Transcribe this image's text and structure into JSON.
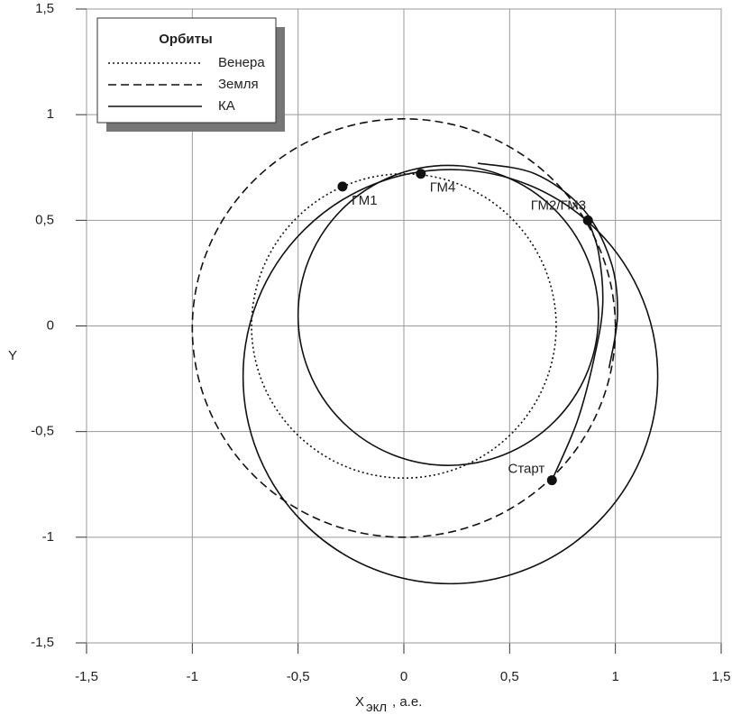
{
  "chart_data": {
    "type": "orbit",
    "x_label": "X",
    "x_label_sub": "экл",
    "x_label_unit": ", а.е.",
    "y_label": "Y",
    "xlim": [
      -1.5,
      1.5
    ],
    "ylim": [
      -1.5,
      1.5
    ],
    "xticks": [
      {
        "value": -1.5,
        "label": "-1,5"
      },
      -1,
      {
        "value": -0.5,
        "label": "-0,5"
      },
      0,
      {
        "value": 0.5,
        "label": "0,5"
      },
      1,
      {
        "value": 1.5,
        "label": "1,5"
      }
    ],
    "yticks": [
      {
        "value": -1.5,
        "label": "-1,5"
      },
      -1,
      {
        "value": -0.5,
        "label": "-0,5"
      },
      0,
      {
        "value": 0.5,
        "label": "0,5"
      },
      1,
      {
        "value": 1.5,
        "label": "1,5"
      }
    ],
    "grid": true,
    "legend_title": "Орбиты",
    "legend": "upper left",
    "series": [
      {
        "name": "Венера",
        "style": "dotted",
        "color": "#111",
        "orbits": [
          {
            "cx": 0,
            "cy": 0,
            "rx": 0.72,
            "ry": 0.72
          }
        ]
      },
      {
        "name": "Земля",
        "style": "dashed",
        "color": "#111",
        "orbits": [
          {
            "cx": 0,
            "cy": -0.01,
            "rx": 1.0,
            "ry": 0.99
          }
        ]
      },
      {
        "name": "КА",
        "style": "solid",
        "color": "#111",
        "orbits": [
          {
            "cx": 0.22,
            "cy": -0.24,
            "rx": 0.98,
            "ry": 0.98
          },
          {
            "cx": 0.21,
            "cy": 0.05,
            "rx": 0.71,
            "ry": 0.71
          }
        ],
        "arcs": [
          {
            "x": [
              0.7,
              0.82,
              0.9,
              0.94,
              0.92,
              0.87
            ],
            "y": [
              -0.73,
              -0.45,
              -0.15,
              0.1,
              0.35,
              0.5
            ]
          },
          {
            "x": [
              0.35,
              0.62,
              0.85,
              0.98,
              1.01,
              0.97
            ],
            "y": [
              0.77,
              0.72,
              0.55,
              0.3,
              0.05,
              -0.2
            ]
          }
        ]
      }
    ],
    "points": [
      {
        "label": "ГМ1",
        "x": -0.29,
        "y": 0.66
      },
      {
        "label": "ГМ4",
        "x": 0.08,
        "y": 0.72
      },
      {
        "label": "ГМ2/ГМ3",
        "x": 0.87,
        "y": 0.5
      },
      {
        "label": "Старт",
        "x": 0.7,
        "y": -0.73
      }
    ]
  }
}
